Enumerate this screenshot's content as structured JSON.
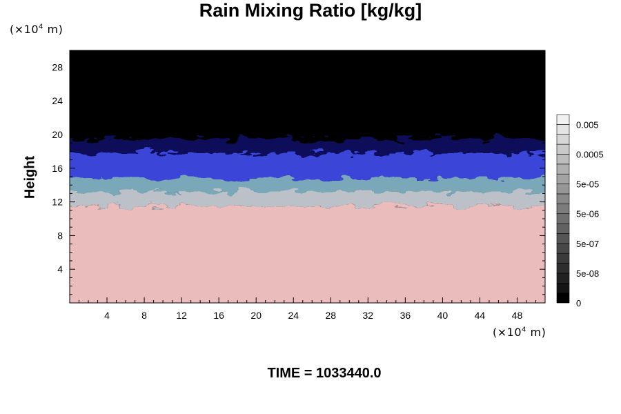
{
  "chart_data": {
    "type": "heatmap",
    "title": "Rain Mixing Ratio [kg/kg]",
    "ylabel": "Height",
    "xlabel": "",
    "y_unit": {
      "prefix": "(×10",
      "exp": "4",
      "suffix": " m)"
    },
    "x_unit": {
      "prefix": "(×10",
      "exp": "4",
      "suffix": " m)"
    },
    "xlim": [
      0,
      51
    ],
    "ylim": [
      0,
      30
    ],
    "x_major_ticks": [
      4,
      8,
      12,
      16,
      20,
      24,
      28,
      32,
      36,
      40,
      44,
      48
    ],
    "y_major_ticks": [
      4,
      8,
      12,
      16,
      20,
      24,
      28
    ],
    "x_tick_labels": [
      "4",
      "8",
      "12",
      "16",
      "20",
      "24",
      "28",
      "32",
      "36",
      "40",
      "44",
      "48"
    ],
    "y_tick_labels": [
      "4",
      "8",
      "12",
      "16",
      "20",
      "24",
      "28"
    ],
    "bands": [
      {
        "name": "pink-lower",
        "color": "#ebbcbc",
        "from": 0,
        "to": 11.5
      },
      {
        "name": "gray-mix",
        "color": "#bcc0c8",
        "from": 11.5,
        "to": 13.2
      },
      {
        "name": "teal-mix",
        "color": "#7aa8b8",
        "from": 13.2,
        "to": 14.8
      },
      {
        "name": "blue-mix",
        "color": "#3a44d8",
        "from": 14.8,
        "to": 17.8
      },
      {
        "name": "dark-blue",
        "color": "#0c0c5a",
        "from": 17.8,
        "to": 19.5
      },
      {
        "name": "black-upper",
        "color": "#000000",
        "from": 19.5,
        "to": 30
      }
    ],
    "colorbar": {
      "tick_labels": [
        "0",
        "5e-08",
        "5e-07",
        "5e-06",
        "5e-05",
        "0.0005",
        "0.005"
      ],
      "colors": [
        "#000000",
        "#141414",
        "#212121",
        "#2e2e2e",
        "#3b3b3b",
        "#484848",
        "#555555",
        "#626262",
        "#6f6f6f",
        "#7c7c7c",
        "#898989",
        "#969696",
        "#a3a3a3",
        "#b0b0b0",
        "#bdbdbd",
        "#cacaca",
        "#d7d7d7",
        "#e4e4e4",
        "#f1f1f1"
      ]
    },
    "time_label": "TIME = 1033440.0"
  }
}
